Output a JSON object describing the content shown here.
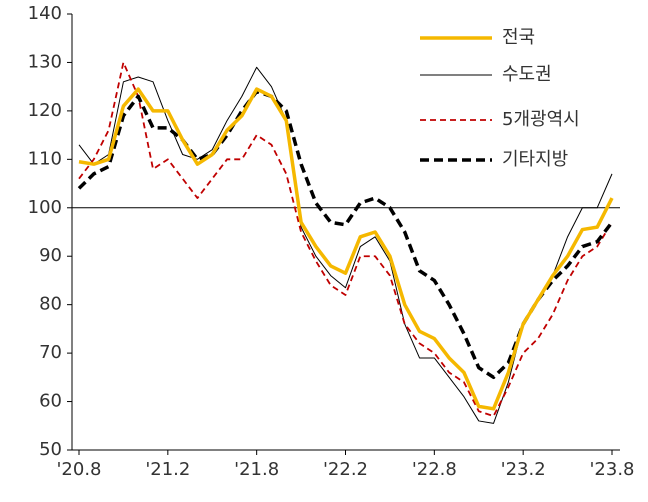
{
  "chart_data": {
    "type": "line",
    "categories": [
      "'20.8",
      null,
      null,
      null,
      null,
      null,
      "'21.2",
      null,
      null,
      null,
      null,
      null,
      "'21.8",
      null,
      null,
      null,
      null,
      null,
      "'22.2",
      null,
      null,
      null,
      null,
      null,
      "'22.8",
      null,
      null,
      null,
      null,
      null,
      "'23.2",
      null,
      null,
      null,
      null,
      null,
      "'23.8"
    ],
    "series": [
      {
        "name": "전국",
        "color": "#f5b800",
        "dash": false,
        "width": 3.5,
        "values": [
          109.5,
          109,
          110,
          121,
          124.5,
          120,
          120,
          114,
          109,
          111,
          116,
          119,
          124.5,
          123,
          118,
          97,
          92,
          88,
          86.5,
          94,
          95,
          90,
          80,
          74.5,
          73,
          69,
          66,
          59,
          58.5,
          66,
          76,
          81,
          86,
          90,
          95.5,
          96,
          102
        ]
      },
      {
        "name": "수도권",
        "color": "#000000",
        "dash": false,
        "width": 1,
        "values": [
          113,
          109,
          111,
          126,
          127,
          126,
          118,
          111,
          110,
          112,
          118,
          123,
          129,
          125,
          118,
          96,
          90,
          86,
          83.5,
          92,
          94,
          89,
          76,
          69,
          69,
          65,
          61,
          56,
          55.5,
          64,
          76,
          81,
          86,
          94,
          100,
          100,
          107
        ]
      },
      {
        "name": "5개광역시",
        "color": "#c00000",
        "dash": true,
        "width": 1.8,
        "values": [
          106,
          110,
          116,
          130,
          123,
          108,
          110,
          106,
          102,
          106,
          110,
          110,
          115,
          113,
          107,
          95,
          89,
          84,
          82,
          90,
          90,
          86,
          76,
          72,
          70,
          66,
          64,
          58,
          57,
          63,
          70,
          73,
          78,
          85,
          90,
          92,
          97
        ]
      },
      {
        "name": "기타지방",
        "color": "#000000",
        "dash": true,
        "width": 3.5,
        "values": [
          104,
          107,
          108.5,
          119,
          123,
          116.5,
          116.5,
          114,
          110,
          111,
          115,
          120,
          124,
          123,
          120,
          109,
          101,
          97,
          96.5,
          101,
          102,
          100,
          95,
          87,
          85,
          80,
          74,
          67,
          65,
          68,
          76,
          81,
          85,
          88,
          92,
          93,
          97
        ]
      }
    ],
    "ylim": [
      50,
      140
    ],
    "yticks": [
      50,
      60,
      70,
      80,
      90,
      100,
      110,
      120,
      130,
      140
    ],
    "reference_line": 100,
    "legend": "top-right"
  }
}
